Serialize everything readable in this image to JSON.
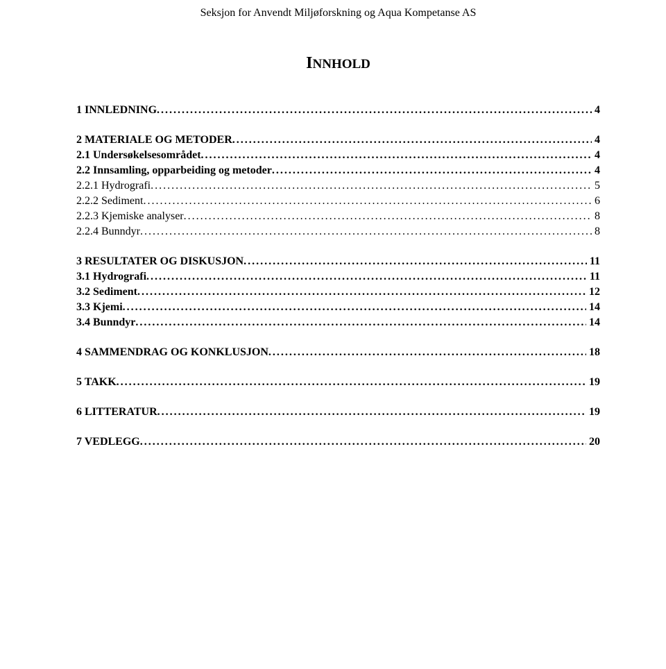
{
  "header": "Seksjon for Anvendt Miljøforskning og Aqua Kompetanse AS",
  "title_first": "I",
  "title_rest": "NNHOLD",
  "toc": [
    {
      "level": 1,
      "label": "1 INNLEDNING",
      "page": "4"
    },
    {
      "level": 1,
      "label": "2 MATERIALE OG METODER",
      "page": "4"
    },
    {
      "level": 2,
      "label": "2.1 Undersøkelsesområdet",
      "page": "4"
    },
    {
      "level": 2,
      "label": "2.2 Innsamling, opparbeiding og metoder",
      "page": "4"
    },
    {
      "level": 3,
      "label": "2.2.1 Hydrografi",
      "page": "5"
    },
    {
      "level": 3,
      "label": "2.2.2 Sediment",
      "page": "6"
    },
    {
      "level": 3,
      "label": "2.2.3 Kjemiske analyser",
      "page": "8"
    },
    {
      "level": 3,
      "label": "2.2.4 Bunndyr",
      "page": "8"
    },
    {
      "level": 1,
      "label": "3 RESULTATER OG DISKUSJON",
      "page": "11"
    },
    {
      "level": 2,
      "label": "3.1 Hydrografi",
      "page": "11"
    },
    {
      "level": 2,
      "label": "3.2 Sediment",
      "page": "12"
    },
    {
      "level": 2,
      "label": "3.3 Kjemi",
      "page": "14"
    },
    {
      "level": 2,
      "label": "3.4 Bunndyr",
      "page": "14"
    },
    {
      "level": 1,
      "label": "4 SAMMENDRAG OG KONKLUSJON",
      "page": "18"
    },
    {
      "level": 1,
      "label": "5 TAKK",
      "page": "19"
    },
    {
      "level": 1,
      "label": "6 LITTERATUR",
      "page": "19"
    },
    {
      "level": 1,
      "label": "7 VEDLEGG",
      "page": "20"
    }
  ]
}
